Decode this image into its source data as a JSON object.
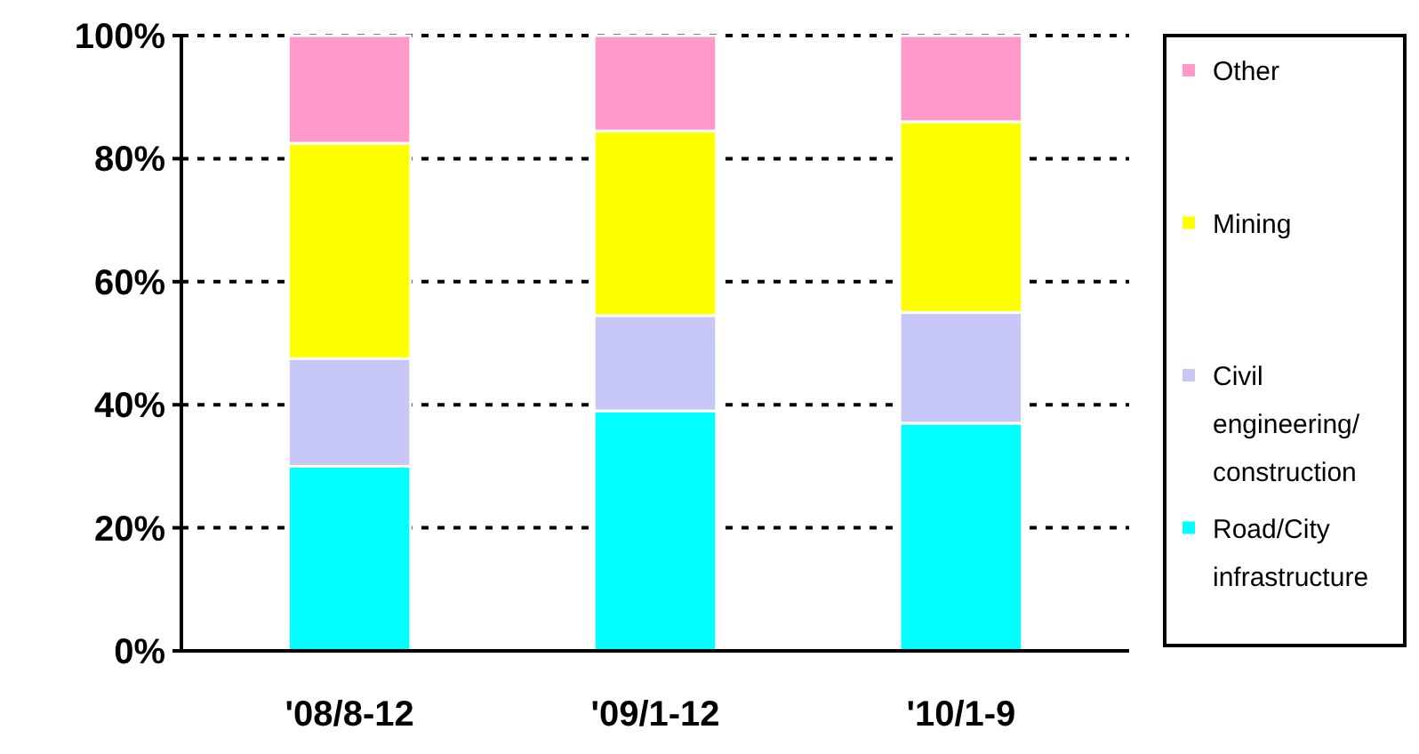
{
  "chart_data": {
    "type": "bar",
    "stacked": true,
    "categories": [
      "'08/8-12",
      "'09/1-12",
      "'10/1-9"
    ],
    "series": [
      {
        "name": "Road/City infrastructure",
        "color": "#00ffff",
        "values": [
          30,
          39,
          37
        ]
      },
      {
        "name": "Civil engineering/construction",
        "color": "#c8c8f8",
        "values": [
          17.5,
          15.5,
          18
        ]
      },
      {
        "name": "Mining",
        "color": "#ffff00",
        "values": [
          35,
          30,
          31
        ]
      },
      {
        "name": "Other",
        "color": "#ff99cc",
        "values": [
          17.5,
          15.5,
          14
        ]
      }
    ],
    "ylim": [
      0,
      100
    ],
    "yticks": [
      {
        "value": 0,
        "label": "0%"
      },
      {
        "value": 20,
        "label": "20%"
      },
      {
        "value": 40,
        "label": "40%"
      },
      {
        "value": 60,
        "label": "60%"
      },
      {
        "value": 80,
        "label": "80%"
      },
      {
        "value": 100,
        "label": "100%"
      }
    ],
    "grid": "y",
    "legend": "right"
  }
}
